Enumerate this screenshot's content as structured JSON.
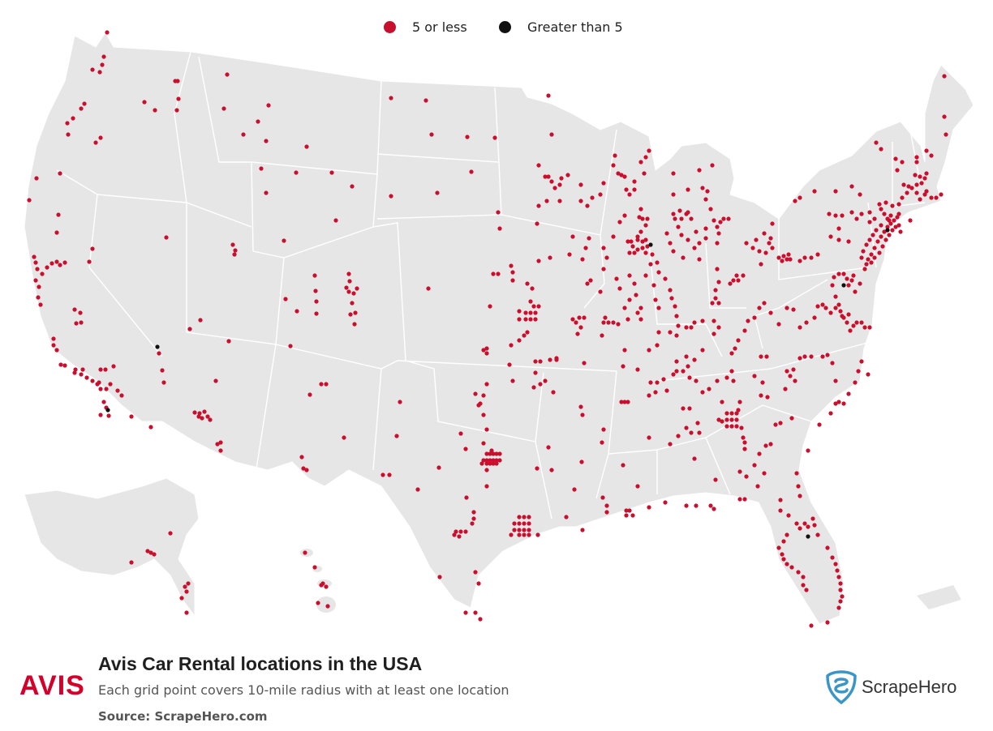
{
  "legend": {
    "low_label": "5 or less",
    "high_label": "Greater than 5"
  },
  "colors": {
    "low": "#c8102e",
    "high": "#111111",
    "land": "#e6e6e6",
    "border": "#ffffff",
    "watermark": "#c9d9e6",
    "brand_accent": "#3a95c8",
    "avis_red": "#d4002a"
  },
  "footer": {
    "logo_text": "AVIS",
    "title": "Avis Car Rental locations in the USA",
    "subtitle": "Each grid point covers 10-mile radius with at least one location",
    "source": "Source: ScrapeHero.com"
  },
  "brand": {
    "name": "ScrapeHero",
    "icon": "scrapehero-shield-icon"
  },
  "map": {
    "icon": "scrapehero-watermark-icon"
  }
}
